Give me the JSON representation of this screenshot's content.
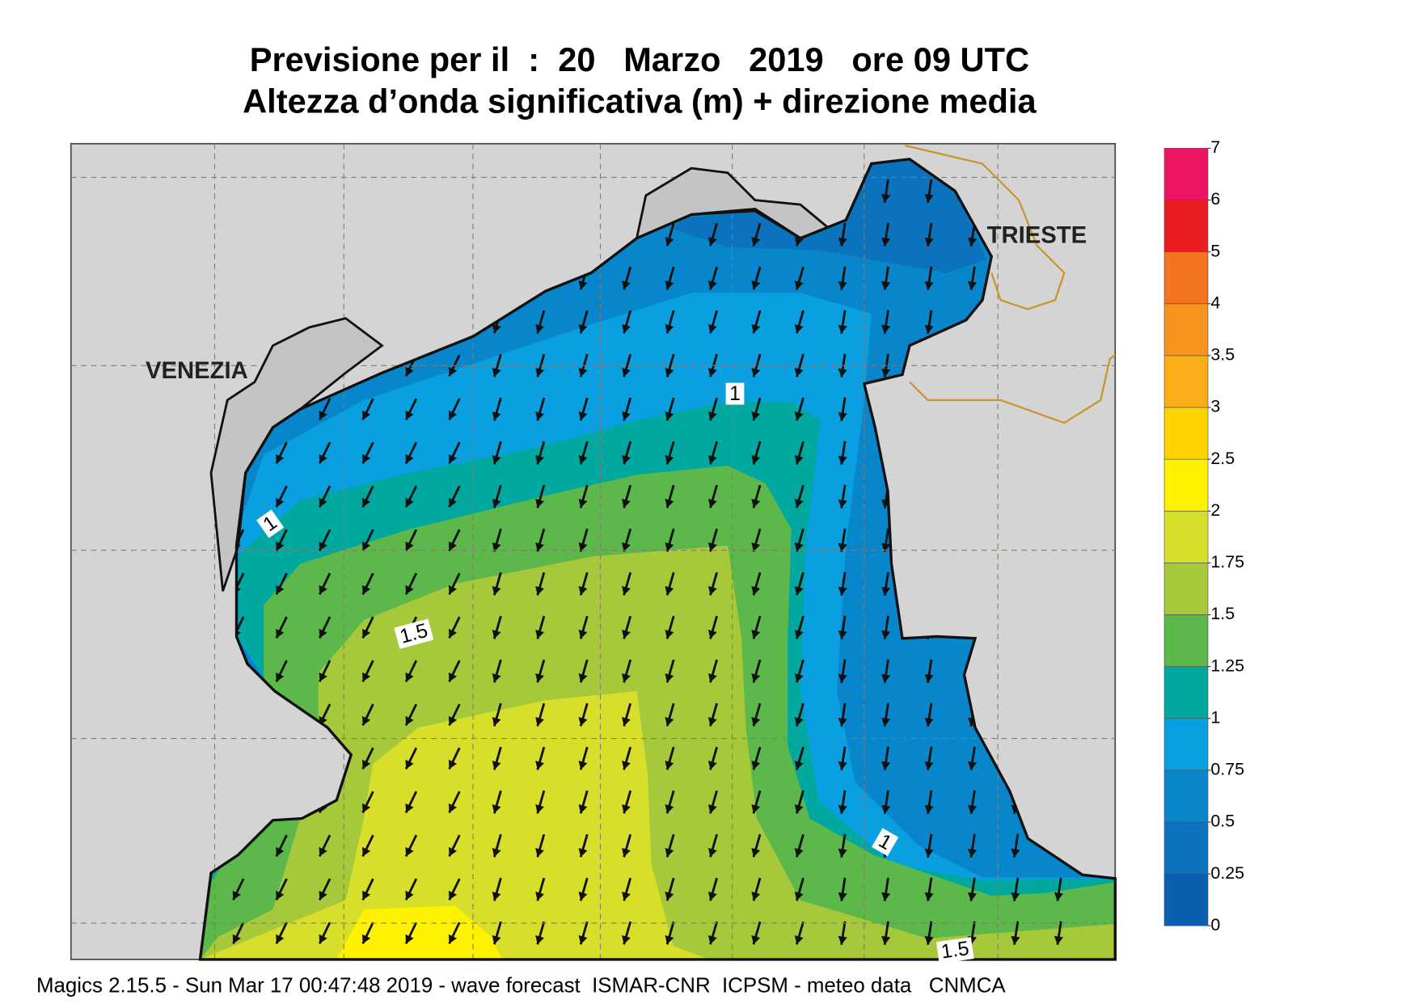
{
  "title": {
    "line1": "Previsione per il  :  20   Marzo   2019   ore 09 UTC",
    "line2": "Altezza d’onda significativa (m) + direzione media"
  },
  "places": [
    "VENEZIA",
    "TRIESTE"
  ],
  "contour_labels": [
    "1",
    "1",
    "1",
    "1.5",
    "1.5"
  ],
  "legend": {
    "ticks": [
      0,
      0.25,
      0.5,
      0.75,
      1,
      1.25,
      1.5,
      1.75,
      2,
      2.5,
      3,
      3.5,
      4,
      5,
      6,
      7
    ],
    "colors": [
      "#0a5fae",
      "#0b72bd",
      "#0886cc",
      "#0a9fe0",
      "#00a8a0",
      "#5cb84a",
      "#a5c93a",
      "#d7df2a",
      "#fff200",
      "#ffd200",
      "#fbad18",
      "#f7941d",
      "#f47321",
      "#ec1c24",
      "#ec1463"
    ]
  },
  "footer": "Magics 2.15.5 - Sun Mar 17 00:47:48 2019 - wave forecast  ISMAR-CNR  ICPSM - meteo data   CNMCA"
}
